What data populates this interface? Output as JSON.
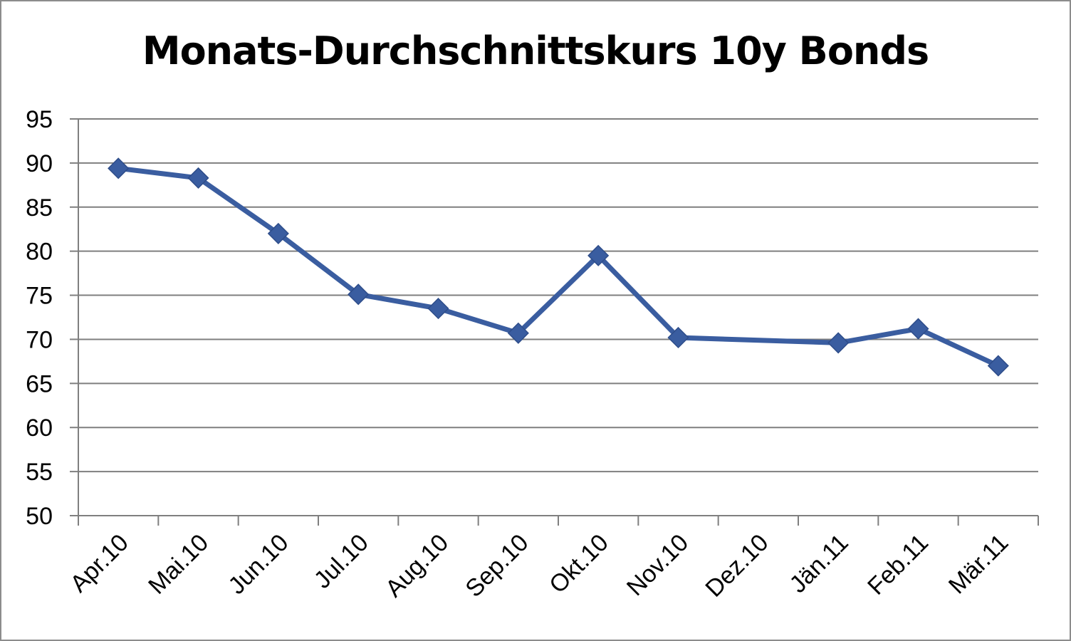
{
  "chart_data": {
    "type": "line",
    "title": "Monats-Durchschnittskurs 10y Bonds",
    "xlabel": "",
    "ylabel": "",
    "categories": [
      "Apr.10",
      "Mai.10",
      "Jun.10",
      "Jul.10",
      "Aug.10",
      "Sep.10",
      "Okt.10",
      "Nov.10",
      "Dez.10",
      "Jän.11",
      "Feb.11",
      "Mär.11"
    ],
    "yticks": [
      "50",
      "55",
      "60",
      "65",
      "70",
      "75",
      "80",
      "85",
      "90",
      "95"
    ],
    "ylim": [
      50,
      95
    ],
    "grid": true,
    "legend": "none",
    "series": [
      {
        "values": [
          89.4,
          88.3,
          82.0,
          75.1,
          73.5,
          70.7,
          79.5,
          70.2,
          null,
          69.6,
          71.2,
          67.0
        ]
      }
    ],
    "colors": {
      "line": "#3a5da0",
      "marker": "#3a5da0",
      "grid": "#7f7f7f",
      "axis": "#7f7f7f"
    }
  }
}
